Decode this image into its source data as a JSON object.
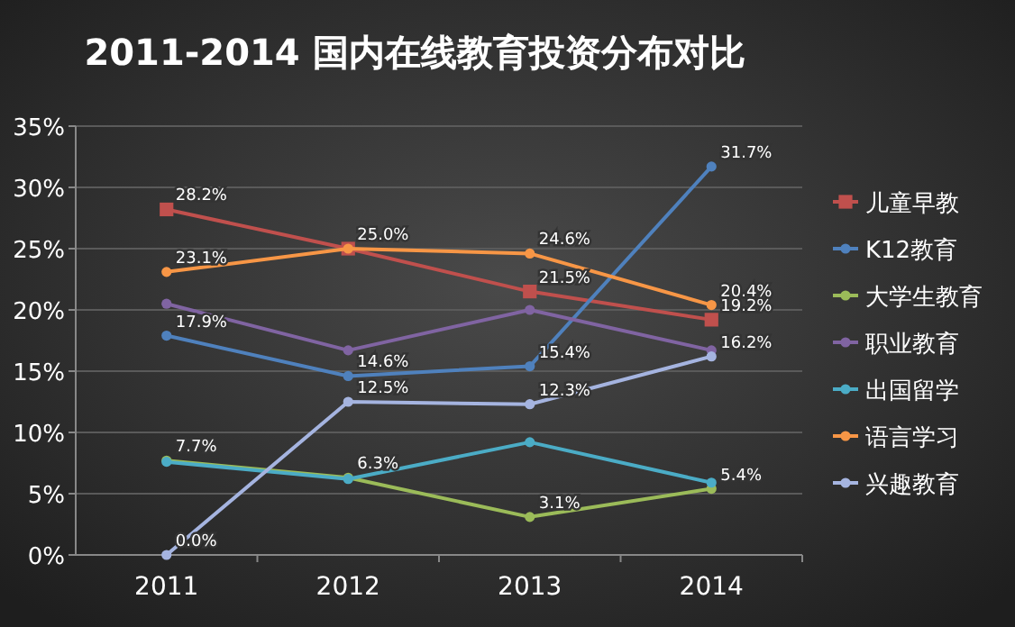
{
  "chart_data": {
    "type": "line",
    "title": "2011-2014 国内在线教育投资分布对比",
    "categories": [
      "2011",
      "2012",
      "2013",
      "2014"
    ],
    "ylim": [
      0,
      35
    ],
    "yticks": [
      {
        "value": 0,
        "label": "0%"
      },
      {
        "value": 5,
        "label": "5%"
      },
      {
        "value": 10,
        "label": "10%"
      },
      {
        "value": 15,
        "label": "15%"
      },
      {
        "value": 20,
        "label": "20%"
      },
      {
        "value": 25,
        "label": "25%"
      },
      {
        "value": 30,
        "label": "30%"
      },
      {
        "value": 35,
        "label": "35%"
      }
    ],
    "grid": "y",
    "legend": "right",
    "marker": "circle",
    "series": [
      {
        "name": "儿童早教",
        "color": "#c0504d",
        "marker": "square",
        "values": [
          28.2,
          25.0,
          21.5,
          19.2
        ],
        "value_labels": [
          "28.2%",
          null,
          "21.5%",
          "19.2%"
        ]
      },
      {
        "name": "K12教育",
        "color": "#4f81bd",
        "values": [
          17.9,
          14.6,
          15.4,
          31.7
        ],
        "value_labels": [
          "17.9%",
          "14.6%",
          "15.4%",
          "31.7%"
        ]
      },
      {
        "name": "大学生教育",
        "color": "#9bbb59",
        "values": [
          7.7,
          6.3,
          3.1,
          5.4
        ],
        "value_labels": [
          "7.7%",
          "6.3%",
          "3.1%",
          "5.4%"
        ]
      },
      {
        "name": "职业教育",
        "color": "#8064a2",
        "values": [
          20.5,
          16.7,
          20.0,
          16.7
        ],
        "value_labels": [
          null,
          null,
          null,
          null
        ]
      },
      {
        "name": "出国留学",
        "color": "#4bacc6",
        "values": [
          7.6,
          6.2,
          9.2,
          5.9
        ],
        "value_labels": [
          null,
          null,
          null,
          null
        ]
      },
      {
        "name": "语言学习",
        "color": "#f79646",
        "values": [
          23.1,
          25.0,
          24.6,
          20.4
        ],
        "value_labels": [
          "23.1%",
          "25.0%",
          "24.6%",
          "20.4%"
        ]
      },
      {
        "name": "兴趣教育",
        "color": "#a5b4e0",
        "values": [
          0.0,
          12.5,
          12.3,
          16.2
        ],
        "value_labels": [
          "0.0%",
          "12.5%",
          "12.3%",
          "16.2%"
        ]
      }
    ]
  }
}
